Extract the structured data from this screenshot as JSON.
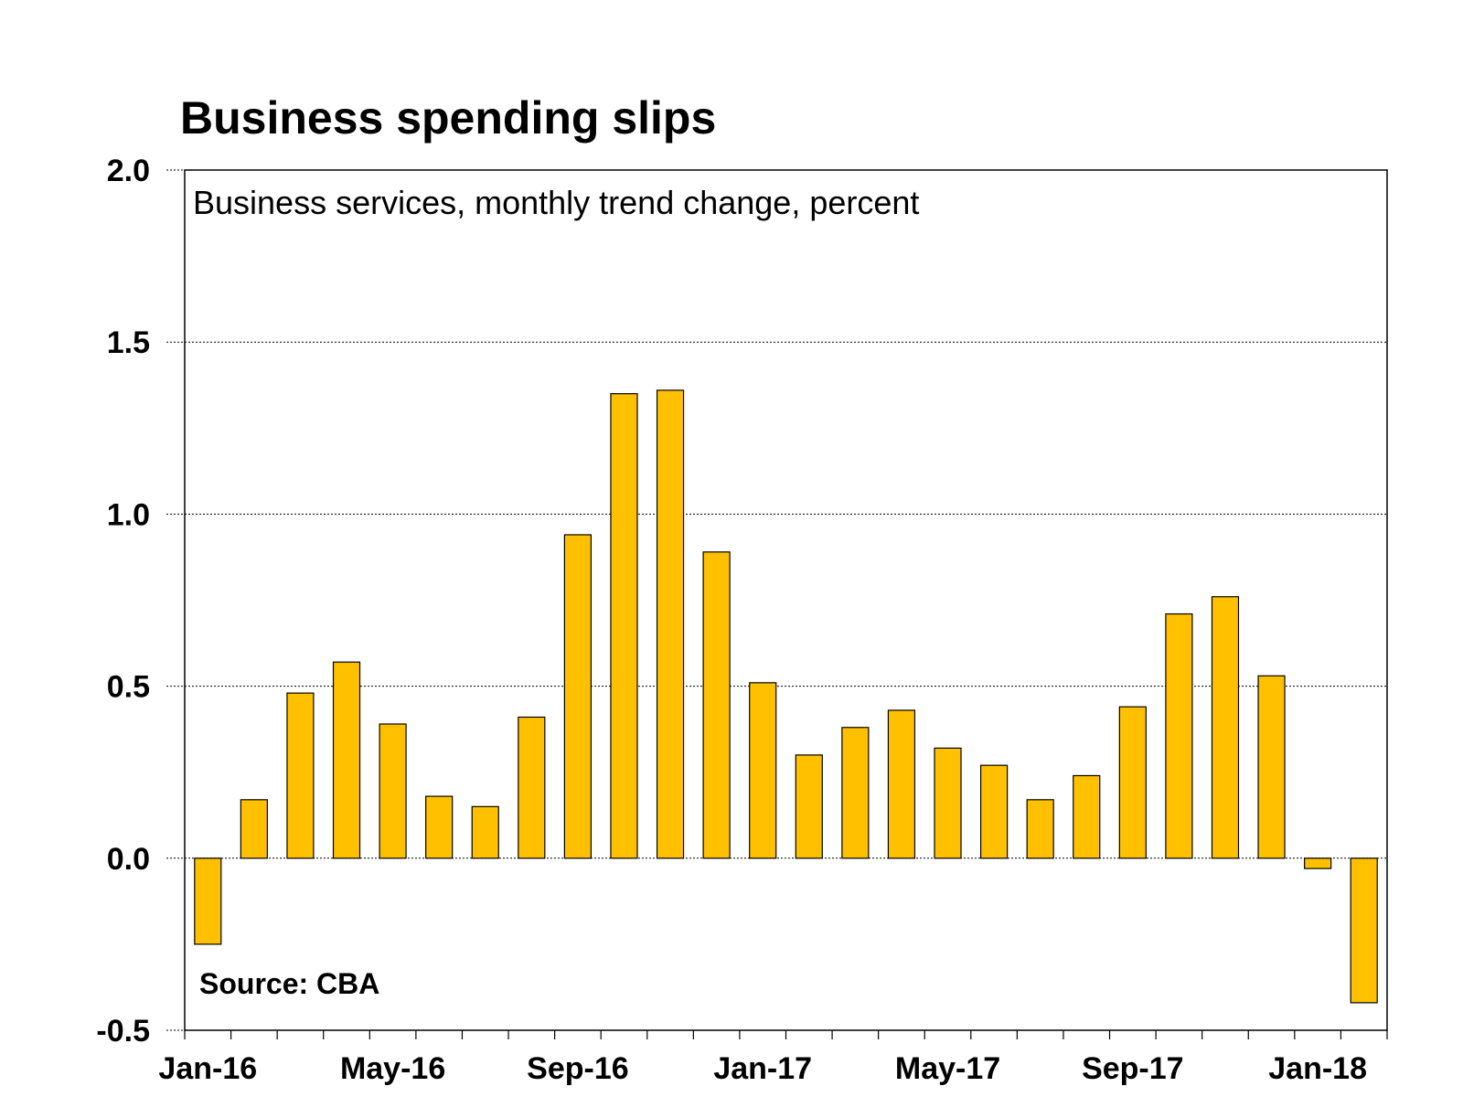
{
  "chart_data": {
    "type": "bar",
    "title": "Business spending slips",
    "subtitle": "Business services, monthly trend change, percent",
    "source": "Source: CBA",
    "xlabel": "",
    "ylabel": "",
    "ylim": [
      -0.5,
      2.0
    ],
    "yticks": [
      "2.0",
      "1.5",
      "1.0",
      "0.5",
      "0.0",
      "-0.5"
    ],
    "ytick_values": [
      2.0,
      1.5,
      1.0,
      0.5,
      0.0,
      -0.5
    ],
    "xtick_labels": [
      "Jan-16",
      "May-16",
      "Sep-16",
      "Jan-17",
      "May-17",
      "Sep-17",
      "Jan-18"
    ],
    "xtick_label_indices": [
      0,
      4,
      8,
      12,
      16,
      20,
      24
    ],
    "grid": true,
    "bar_color": "#FFC000",
    "categories": [
      "Jan-16",
      "Feb-16",
      "Mar-16",
      "Apr-16",
      "May-16",
      "Jun-16",
      "Jul-16",
      "Aug-16",
      "Sep-16",
      "Oct-16",
      "Nov-16",
      "Dec-16",
      "Jan-17",
      "Feb-17",
      "Mar-17",
      "Apr-17",
      "May-17",
      "Jun-17",
      "Jul-17",
      "Aug-17",
      "Sep-17",
      "Oct-17",
      "Nov-17",
      "Dec-17",
      "Jan-18",
      "Feb-18"
    ],
    "values": [
      -0.25,
      0.17,
      0.48,
      0.57,
      0.39,
      0.18,
      0.15,
      0.41,
      0.94,
      1.35,
      1.36,
      0.89,
      0.51,
      0.3,
      0.38,
      0.43,
      0.32,
      0.27,
      0.17,
      0.24,
      0.44,
      0.71,
      0.76,
      0.53,
      -0.03,
      -0.42
    ]
  }
}
